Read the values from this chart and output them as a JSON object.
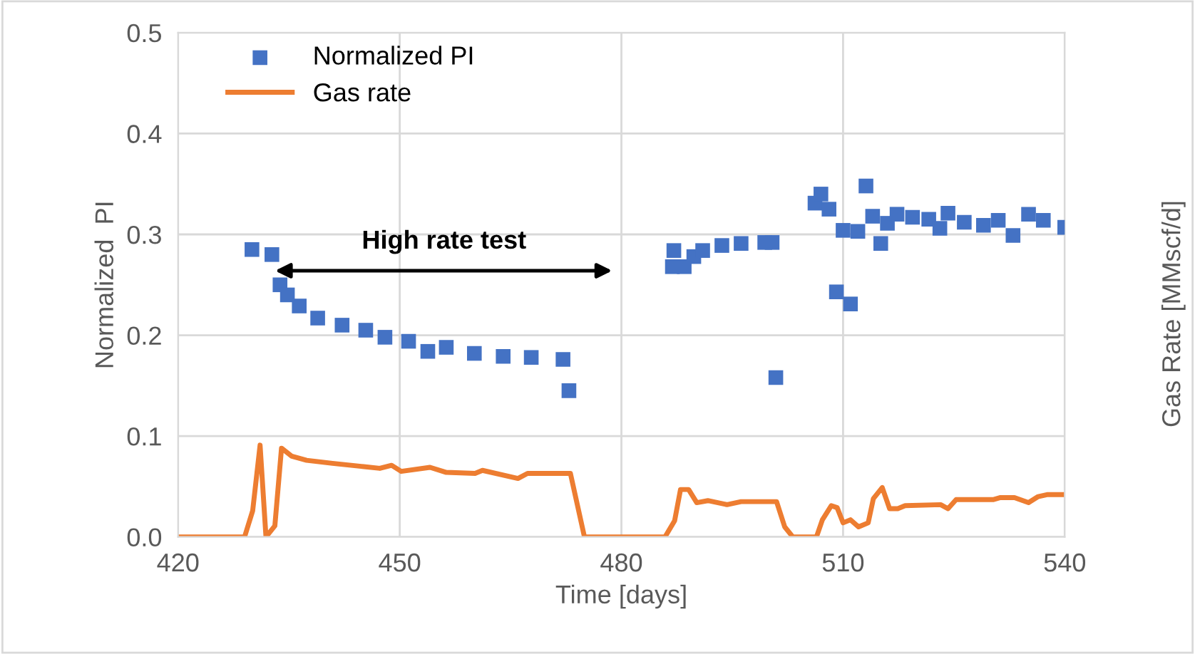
{
  "chart_data": {
    "type": "scatter",
    "xlabel": "Time [days]",
    "ylabel": "Normalized  PI",
    "y2label": "Gas Rate [MMscf/d]",
    "xlim": [
      420,
      540
    ],
    "xticks": [
      420,
      450,
      480,
      510,
      540
    ],
    "ylim": [
      0,
      0.5
    ],
    "yticks": [
      {
        "value": 0,
        "label": "0.0"
      },
      0.1,
      0.2,
      0.3,
      0.4,
      0.5
    ],
    "grid": true,
    "legend": "top left",
    "annotations": [
      "High rate test"
    ],
    "series": [
      {
        "name": "Normalized PI",
        "marker": "square",
        "color": "#4472c4",
        "x": [
          430.0,
          432.7,
          433.8,
          434.8,
          436.4,
          438.9,
          442.2,
          445.4,
          448.0,
          451.2,
          453.8,
          456.3,
          460.1,
          464.0,
          467.8,
          472.1,
          472.9,
          486.9,
          487.1,
          488.5,
          489.8,
          491.0,
          493.6,
          496.2,
          499.4,
          500.4,
          500.9,
          506.2,
          507.0,
          508.1,
          509.1,
          510.0,
          511.0,
          512.0,
          513.1,
          514.0,
          515.1,
          516.0,
          517.3,
          519.4,
          521.6,
          523.1,
          524.2,
          526.4,
          529.0,
          531.0,
          533.0,
          535.1,
          537.1,
          540.0
        ],
        "values": [
          0.285,
          0.28,
          0.25,
          0.24,
          0.229,
          0.217,
          0.21,
          0.205,
          0.198,
          0.194,
          0.184,
          0.188,
          0.182,
          0.179,
          0.178,
          0.176,
          0.145,
          0.268,
          0.284,
          0.268,
          0.278,
          0.284,
          0.289,
          0.291,
          0.292,
          0.292,
          0.158,
          0.331,
          0.34,
          0.325,
          0.243,
          0.304,
          0.231,
          0.303,
          0.348,
          0.318,
          0.291,
          0.311,
          0.32,
          0.317,
          0.315,
          0.306,
          0.321,
          0.312,
          0.309,
          0.314,
          0.299,
          0.32,
          0.314,
          0.307
        ]
      },
      {
        "name": "Gas rate",
        "type": "line",
        "marker": "none",
        "line_style": "solid",
        "color": "#ed7d31",
        "x": [
          420,
          429,
          430.1,
          431.1,
          431.9,
          433.1,
          434.0,
          435.4,
          437.4,
          440.9,
          444.8,
          447.3,
          448.9,
          450.2,
          454.1,
          456.3,
          460.2,
          461.2,
          466.0,
          467.3,
          473.1,
          475.0,
          480.8,
          485.9,
          487.2,
          488.0,
          489.1,
          490.2,
          491.7,
          494.3,
          496.2,
          501.0,
          502.1,
          503.2,
          506.4,
          507.2,
          508.4,
          509.2,
          510.0,
          511.0,
          512.1,
          513.4,
          514.1,
          515.3,
          516.3,
          517.4,
          518.4,
          523.2,
          524.2,
          525.3,
          530.3,
          531.3,
          533.2,
          535.1,
          536.4,
          537.7,
          540
        ],
        "values": [
          0,
          0,
          0.026,
          0.091,
          0,
          0.011,
          0.088,
          0.08,
          0.076,
          0.073,
          0.07,
          0.068,
          0.071,
          0.065,
          0.069,
          0.064,
          0.063,
          0.066,
          0.058,
          0.063,
          0.063,
          0,
          0,
          0,
          0.016,
          0.047,
          0.047,
          0.034,
          0.036,
          0.032,
          0.035,
          0.035,
          0.01,
          0,
          0,
          0.017,
          0.031,
          0.029,
          0.014,
          0.017,
          0.01,
          0.014,
          0.038,
          0.049,
          0.028,
          0.028,
          0.031,
          0.032,
          0.028,
          0.037,
          0.037,
          0.039,
          0.039,
          0.034,
          0.04,
          0.042,
          0.042
        ]
      }
    ]
  }
}
